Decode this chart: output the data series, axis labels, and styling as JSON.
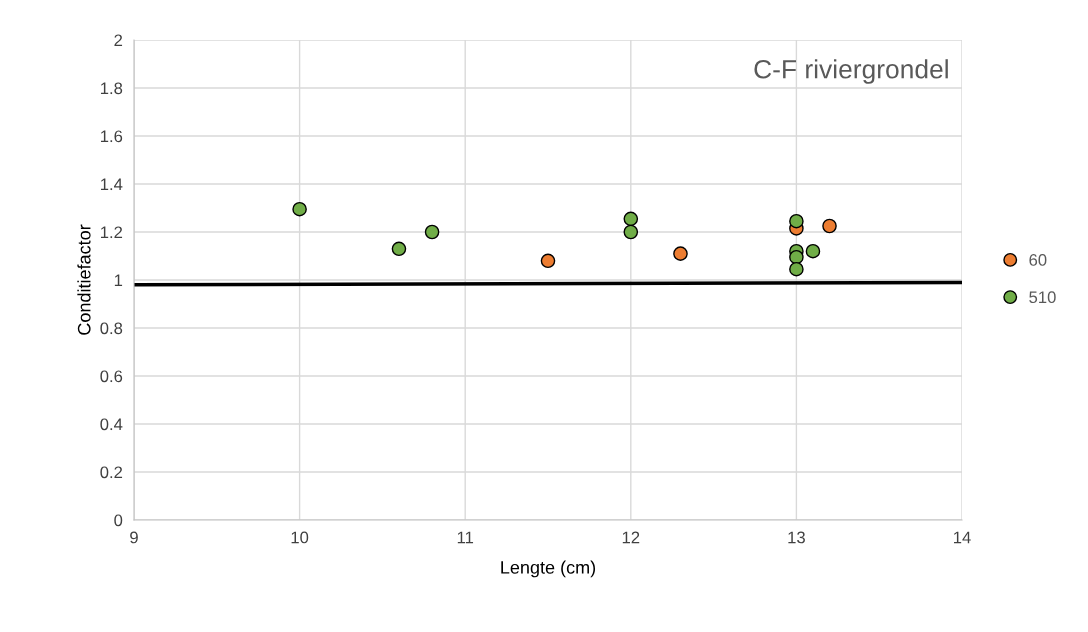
{
  "chart_data": {
    "type": "scatter",
    "title": "C-F riviergrondel",
    "xlabel": "Lengte (cm)",
    "ylabel": "Conditiefactor",
    "xlim": [
      9,
      14
    ],
    "xticks": [
      9,
      10,
      11,
      12,
      13,
      14
    ],
    "ylim": [
      0,
      2
    ],
    "yticks": [
      0,
      0.2,
      0.4,
      0.6,
      0.8,
      1,
      1.2,
      1.4,
      1.6,
      1.8,
      2
    ],
    "grid": true,
    "legend": "right",
    "marker": "circle",
    "series": [
      {
        "name": "60",
        "color": "#ed7d31",
        "x": [
          11.5,
          12.3,
          13,
          13.2
        ],
        "values": [
          1.08,
          1.11,
          1.215,
          1.225
        ]
      },
      {
        "name": "510",
        "color": "#70ad47",
        "x": [
          10,
          10.6,
          10.8,
          12,
          12,
          13,
          13,
          13,
          13,
          13.1
        ],
        "values": [
          1.295,
          1.13,
          1.2,
          1.255,
          1.2,
          1.245,
          1.12,
          1.095,
          1.045,
          1.12
        ]
      },
      {
        "type": "line",
        "color": "#000000",
        "marker": "none",
        "x": [
          9,
          14
        ],
        "values": [
          0.98,
          0.99
        ]
      }
    ]
  }
}
